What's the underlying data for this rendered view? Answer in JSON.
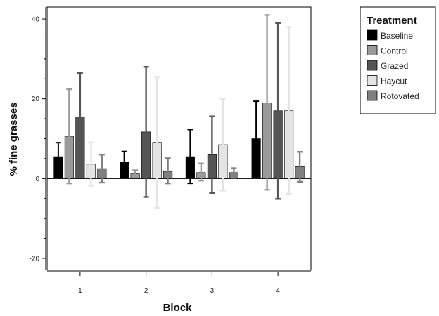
{
  "chart_data": {
    "type": "bar",
    "xlabel": "Block",
    "ylabel": "% fine grasses",
    "categories": [
      "1",
      "2",
      "3",
      "4"
    ],
    "ylim": [
      -23,
      43
    ],
    "yticks": [
      -20,
      0,
      20,
      40
    ],
    "error_bars": true,
    "legend": {
      "title": "Treatment",
      "position": "top-right"
    },
    "series": [
      {
        "name": "Baseline",
        "color": "#000000",
        "values": [
          5.5,
          4.2,
          5.5,
          10.0
        ],
        "err_low": [
          2.0,
          2.1,
          -1.2,
          1.0
        ],
        "err_high": [
          9.0,
          6.8,
          12.3,
          19.4
        ]
      },
      {
        "name": "Control",
        "color": "#9a9a9a",
        "values": [
          10.6,
          1.2,
          1.5,
          19.0
        ],
        "err_low": [
          -1.2,
          0.3,
          -0.5,
          -2.8
        ],
        "err_high": [
          22.4,
          2.1,
          3.8,
          41.0
        ]
      },
      {
        "name": "Grazed",
        "color": "#555555",
        "values": [
          15.4,
          11.7,
          6.0,
          17.0
        ],
        "err_low": [
          4.3,
          -4.6,
          -3.6,
          -5.1
        ],
        "err_high": [
          26.5,
          28.0,
          15.6,
          39.0
        ]
      },
      {
        "name": "Haycut",
        "color": "#e4e4e4",
        "values": [
          3.6,
          9.1,
          8.5,
          17.0
        ],
        "err_low": [
          -1.8,
          -7.4,
          -3.0,
          -3.8
        ],
        "err_high": [
          9.1,
          25.5,
          20.0,
          38.0
        ]
      },
      {
        "name": "Rotovated",
        "color": "#808080",
        "values": [
          2.5,
          1.8,
          1.5,
          3.0
        ],
        "err_low": [
          -1.0,
          -1.2,
          0.2,
          -0.8
        ],
        "err_high": [
          6.0,
          5.1,
          2.6,
          6.7
        ]
      }
    ]
  }
}
